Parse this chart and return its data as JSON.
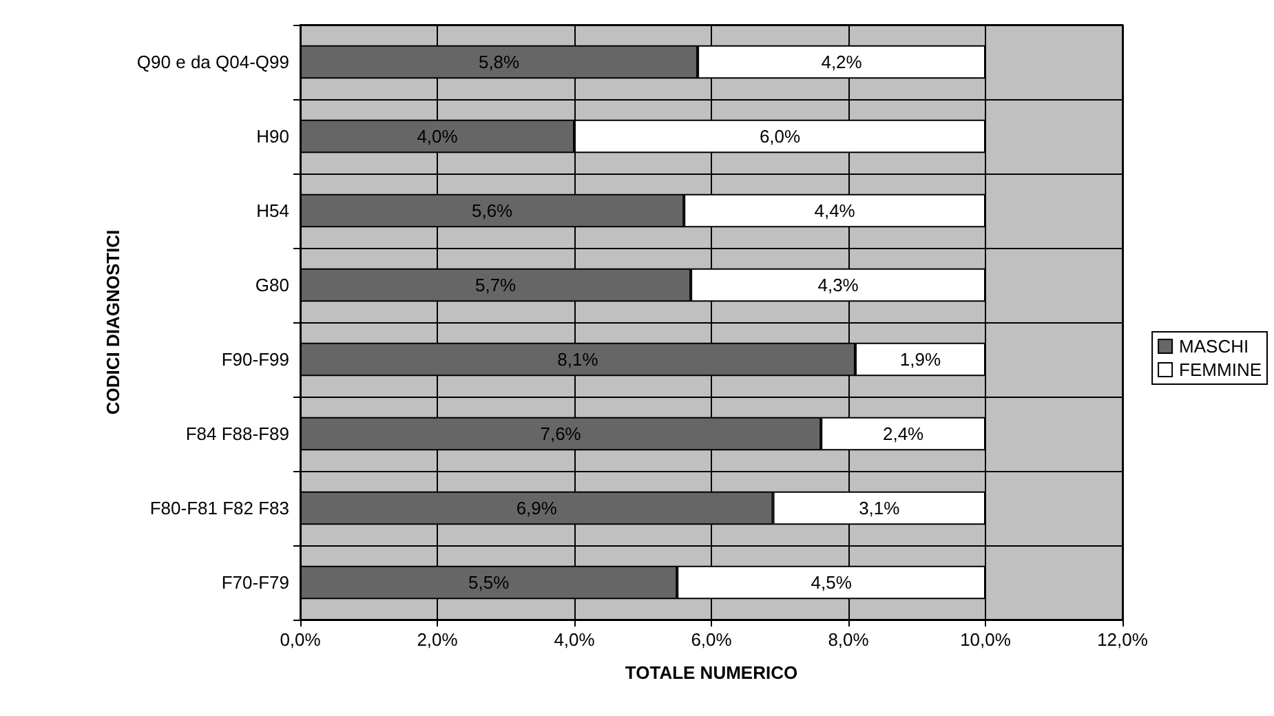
{
  "chart_data": {
    "type": "bar",
    "orientation": "horizontal",
    "stacked": true,
    "xlabel": "TOTALE NUMERICO",
    "ylabel": "CODICI DIAGNOSTICI",
    "categories": [
      "Q90 e da Q04-Q99",
      "H90",
      "H54",
      "G80",
      "F90-F99",
      "F84 F88-F89",
      "F80-F81 F82 F83",
      "F70-F79"
    ],
    "series": [
      {
        "name": "MASCHI",
        "color": "#666666",
        "values": [
          5.8,
          4.0,
          5.6,
          5.7,
          8.1,
          7.6,
          6.9,
          5.5
        ],
        "value_labels": [
          "5,8%",
          "4,0%",
          "5,6%",
          "5,7%",
          "8,1%",
          "7,6%",
          "6,9%",
          "5,5%"
        ]
      },
      {
        "name": "FEMMINE",
        "color": "#ffffff",
        "values": [
          4.2,
          6.0,
          4.4,
          4.3,
          1.9,
          2.4,
          3.1,
          4.5
        ],
        "value_labels": [
          "4,2%",
          "6,0%",
          "4,4%",
          "4,3%",
          "1,9%",
          "2,4%",
          "3,1%",
          "4,5%"
        ]
      }
    ],
    "xlim": [
      0,
      12
    ],
    "xticks": [
      {
        "value": 0,
        "label": "0,0%"
      },
      {
        "value": 2,
        "label": "2,0%"
      },
      {
        "value": 4,
        "label": "4,0%"
      },
      {
        "value": 6,
        "label": "6,0%"
      },
      {
        "value": 8,
        "label": "8,0%"
      },
      {
        "value": 10,
        "label": "10,0%"
      },
      {
        "value": 12,
        "label": "12,0%"
      }
    ],
    "grid": true,
    "legend": "right"
  }
}
